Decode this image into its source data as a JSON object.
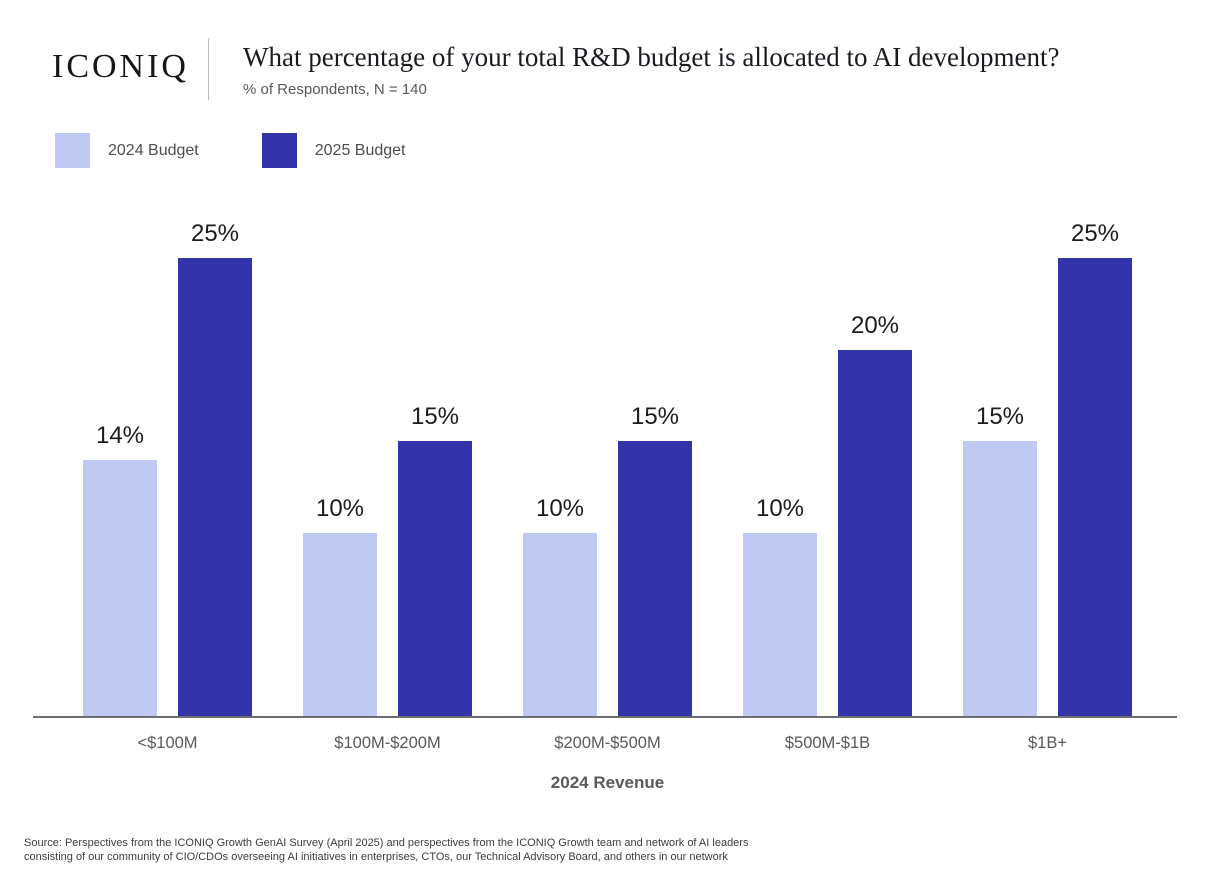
{
  "header": {
    "logo": "ICONIQ",
    "title": "What percentage of your total R&D budget is allocated to AI development?",
    "subtitle": "% of Respondents, N = 140"
  },
  "chart_data": {
    "type": "bar",
    "title": "What percentage of your total R&D budget is allocated to AI development?",
    "subtitle": "% of Respondents, N = 140",
    "categories": [
      "<$100M",
      "$100M-$200M",
      "$200M-$500M",
      "$500M-$1B",
      "$1B+"
    ],
    "series": [
      {
        "name": "2024 Budget",
        "color": "#bfc9f1",
        "values": [
          14,
          10,
          10,
          10,
          15
        ]
      },
      {
        "name": "2025 Budget",
        "color": "#3434aa",
        "values": [
          25,
          15,
          15,
          20,
          25
        ]
      }
    ],
    "value_suffix": "%",
    "xlabel": "2024 Revenue",
    "ylabel": "% of Respondents",
    "ylim": [
      0,
      25
    ],
    "grid": false,
    "legend_position": "top-left",
    "data_labels": true
  },
  "footer": {
    "line1": "Source: Perspectives from the ICONIQ Growth GenAI Survey (April 2025) and perspectives from the ICONIQ Growth team and network of AI leaders",
    "line2": "consisting of our community of CIO/CDOs overseeing AI initiatives in enterprises, CTOs, our Technical Advisory Board, and others in our network"
  }
}
